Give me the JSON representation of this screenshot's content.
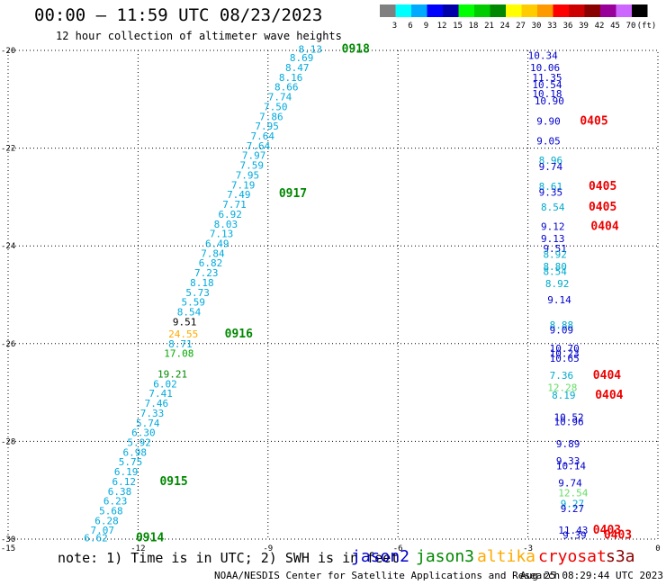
{
  "header": {
    "title": "00:00 – 11:59 UTC 08/23/2023",
    "subtitle": "12 hour collection of altimeter wave heights"
  },
  "color_scale": {
    "colors": [
      "#808080",
      "#00ffff",
      "#00aaff",
      "#0000ff",
      "#0000aa",
      "#00ff00",
      "#00cc00",
      "#008800",
      "#ffff00",
      "#ffcc00",
      "#ff9900",
      "#ff0000",
      "#cc0000",
      "#880000",
      "#990099",
      "#cc66ff",
      "#000000"
    ],
    "labels": [
      "3",
      "6",
      "9",
      "12",
      "15",
      "18",
      "21",
      "24",
      "27",
      "30",
      "33",
      "36",
      "39",
      "42",
      "45",
      "70",
      "(ft)"
    ]
  },
  "map": {
    "lon_ticks": [
      "-15",
      "-12",
      "-9",
      "-6",
      "-3",
      "0"
    ],
    "lat_ticks": [
      "-20",
      "-22",
      "-24",
      "-26",
      "-28",
      "-30"
    ],
    "colors": {
      "jason3_track": "#00aadd",
      "jason3_alt": "#00aa00",
      "jason3_bright": "#33cc33",
      "altika": "#ffaa00",
      "jason2": "#0000cc",
      "jason2_alt": "#00aacc",
      "jason2_light": "#66dd66",
      "time_green": "#008800",
      "time_red": "#ee0000",
      "black": "#000000"
    },
    "labels": [
      {
        "text": "8.13",
        "lon": -8.3,
        "lat": -19.97,
        "c": "jason3_track"
      },
      {
        "text": "0918",
        "lon": -7.3,
        "lat": -19.97,
        "c": "time_green",
        "big": true
      },
      {
        "text": "8.69",
        "lon": -8.5,
        "lat": -20.15,
        "c": "jason3_track"
      },
      {
        "text": "8.47",
        "lon": -8.6,
        "lat": -20.35,
        "c": "jason3_track"
      },
      {
        "text": "8.16",
        "lon": -8.75,
        "lat": -20.55,
        "c": "jason3_track"
      },
      {
        "text": "8.66",
        "lon": -8.85,
        "lat": -20.75,
        "c": "jason3_track"
      },
      {
        "text": "7.74",
        "lon": -9.0,
        "lat": -20.95,
        "c": "jason3_track"
      },
      {
        "text": "7.50",
        "lon": -9.1,
        "lat": -21.15,
        "c": "jason3_track"
      },
      {
        "text": "7.86",
        "lon": -9.2,
        "lat": -21.35,
        "c": "jason3_track"
      },
      {
        "text": "7.95",
        "lon": -9.3,
        "lat": -21.55,
        "c": "jason3_track"
      },
      {
        "text": "7.64",
        "lon": -9.4,
        "lat": -21.75,
        "c": "jason3_track"
      },
      {
        "text": "7.64",
        "lon": -9.5,
        "lat": -21.95,
        "c": "jason3_track"
      },
      {
        "text": "7.97",
        "lon": -9.6,
        "lat": -22.15,
        "c": "jason3_track"
      },
      {
        "text": "7.59",
        "lon": -9.65,
        "lat": -22.35,
        "c": "jason3_track"
      },
      {
        "text": "7.95",
        "lon": -9.75,
        "lat": -22.55,
        "c": "jason3_track"
      },
      {
        "text": "7.19",
        "lon": -9.85,
        "lat": -22.75,
        "c": "jason3_track"
      },
      {
        "text": "7.49",
        "lon": -9.95,
        "lat": -22.95,
        "c": "jason3_track"
      },
      {
        "text": "0917",
        "lon": -8.75,
        "lat": -22.93,
        "c": "time_green",
        "big": true
      },
      {
        "text": "7.71",
        "lon": -10.05,
        "lat": -23.15,
        "c": "jason3_track"
      },
      {
        "text": "6.92",
        "lon": -10.15,
        "lat": -23.35,
        "c": "jason3_track"
      },
      {
        "text": "8.03",
        "lon": -10.25,
        "lat": -23.55,
        "c": "jason3_track"
      },
      {
        "text": "7.13",
        "lon": -10.35,
        "lat": -23.75,
        "c": "jason3_track"
      },
      {
        "text": "6.49",
        "lon": -10.45,
        "lat": -23.95,
        "c": "jason3_track"
      },
      {
        "text": "7.84",
        "lon": -10.55,
        "lat": -24.15,
        "c": "jason3_track"
      },
      {
        "text": "6.82",
        "lon": -10.6,
        "lat": -24.35,
        "c": "jason3_track"
      },
      {
        "text": "7.23",
        "lon": -10.7,
        "lat": -24.55,
        "c": "jason3_track"
      },
      {
        "text": "8.18",
        "lon": -10.8,
        "lat": -24.75,
        "c": "jason3_track"
      },
      {
        "text": "5.73",
        "lon": -10.9,
        "lat": -24.95,
        "c": "jason3_track"
      },
      {
        "text": "5.59",
        "lon": -11.0,
        "lat": -25.15,
        "c": "jason3_track"
      },
      {
        "text": "8.54",
        "lon": -11.1,
        "lat": -25.35,
        "c": "jason3_track"
      },
      {
        "text": "9.51",
        "lon": -11.2,
        "lat": -25.55,
        "c": "black"
      },
      {
        "text": "24.55",
        "lon": -11.3,
        "lat": -25.8,
        "c": "altika"
      },
      {
        "text": "0916",
        "lon": -10.0,
        "lat": -25.8,
        "c": "time_green",
        "big": true
      },
      {
        "text": "8.71",
        "lon": -11.3,
        "lat": -26.0,
        "c": "jason3_track"
      },
      {
        "text": "17.08",
        "lon": -11.4,
        "lat": -26.2,
        "c": "jason3_alt"
      },
      {
        "text": "19.21",
        "lon": -11.55,
        "lat": -26.62,
        "c": "time_green"
      },
      {
        "text": "6.02",
        "lon": -11.65,
        "lat": -26.82,
        "c": "jason3_track"
      },
      {
        "text": "7.41",
        "lon": -11.75,
        "lat": -27.02,
        "c": "jason3_track"
      },
      {
        "text": "7.46",
        "lon": -11.85,
        "lat": -27.22,
        "c": "jason3_track"
      },
      {
        "text": "7.33",
        "lon": -11.95,
        "lat": -27.42,
        "c": "jason3_track"
      },
      {
        "text": "5.74",
        "lon": -12.05,
        "lat": -27.62,
        "c": "jason3_track"
      },
      {
        "text": "6.30",
        "lon": -12.15,
        "lat": -27.82,
        "c": "jason3_track"
      },
      {
        "text": "5.92",
        "lon": -12.25,
        "lat": -28.02,
        "c": "jason3_track"
      },
      {
        "text": "6.98",
        "lon": -12.35,
        "lat": -28.22,
        "c": "jason3_track"
      },
      {
        "text": "5.75",
        "lon": -12.45,
        "lat": -28.42,
        "c": "jason3_track"
      },
      {
        "text": "6.19",
        "lon": -12.55,
        "lat": -28.62,
        "c": "jason3_track"
      },
      {
        "text": "6.12",
        "lon": -12.6,
        "lat": -28.82,
        "c": "jason3_track"
      },
      {
        "text": "0915",
        "lon": -11.5,
        "lat": -28.82,
        "c": "time_green",
        "big": true
      },
      {
        "text": "6.38",
        "lon": -12.7,
        "lat": -29.02,
        "c": "jason3_track"
      },
      {
        "text": "6.23",
        "lon": -12.8,
        "lat": -29.22,
        "c": "jason3_track"
      },
      {
        "text": "5.68",
        "lon": -12.9,
        "lat": -29.42,
        "c": "jason3_track"
      },
      {
        "text": "6.28",
        "lon": -13.0,
        "lat": -29.62,
        "c": "jason3_track"
      },
      {
        "text": "7.07",
        "lon": -13.1,
        "lat": -29.82,
        "c": "jason3_track"
      },
      {
        "text": "6.62",
        "lon": -13.25,
        "lat": -29.97,
        "c": "jason3_track"
      },
      {
        "text": "0914",
        "lon": -12.05,
        "lat": -29.97,
        "c": "time_green",
        "big": true
      },
      {
        "text": "10.34",
        "lon": -3.0,
        "lat": -20.1,
        "c": "jason2"
      },
      {
        "text": "10.06",
        "lon": -2.95,
        "lat": -20.35,
        "c": "jason2"
      },
      {
        "text": "11.35",
        "lon": -2.9,
        "lat": -20.55,
        "c": "jason2"
      },
      {
        "text": "10.54",
        "lon": -2.9,
        "lat": -20.7,
        "c": "jason2"
      },
      {
        "text": "10.18",
        "lon": -2.9,
        "lat": -20.88,
        "c": "jason2"
      },
      {
        "text": "10.90",
        "lon": -2.85,
        "lat": -21.03,
        "c": "jason2"
      },
      {
        "text": "9.90",
        "lon": -2.8,
        "lat": -21.45,
        "c": "jason2"
      },
      {
        "text": "0405",
        "lon": -1.8,
        "lat": -21.45,
        "c": "time_red",
        "big": true
      },
      {
        "text": "9.05",
        "lon": -2.8,
        "lat": -21.85,
        "c": "jason2"
      },
      {
        "text": "8.96",
        "lon": -2.75,
        "lat": -22.25,
        "c": "jason2_alt"
      },
      {
        "text": "9.74",
        "lon": -2.75,
        "lat": -22.38,
        "c": "jason2"
      },
      {
        "text": "8.61",
        "lon": -2.75,
        "lat": -22.78,
        "c": "jason2_alt"
      },
      {
        "text": "9.35",
        "lon": -2.75,
        "lat": -22.9,
        "c": "jason2"
      },
      {
        "text": "0405",
        "lon": -1.6,
        "lat": -22.78,
        "c": "time_red",
        "big": true
      },
      {
        "text": "8.54",
        "lon": -2.7,
        "lat": -23.2,
        "c": "jason2_alt"
      },
      {
        "text": "0405",
        "lon": -1.6,
        "lat": -23.2,
        "c": "time_red",
        "big": true
      },
      {
        "text": "9.12",
        "lon": -2.7,
        "lat": -23.6,
        "c": "jason2"
      },
      {
        "text": "0404",
        "lon": -1.55,
        "lat": -23.6,
        "c": "time_red",
        "big": true
      },
      {
        "text": "9.13",
        "lon": -2.7,
        "lat": -23.85,
        "c": "jason2"
      },
      {
        "text": "9.51",
        "lon": -2.65,
        "lat": -24.05,
        "c": "jason2"
      },
      {
        "text": "8.92",
        "lon": -2.65,
        "lat": -24.17,
        "c": "jason2_alt"
      },
      {
        "text": "8.80",
        "lon": -2.65,
        "lat": -24.42,
        "c": "jason2_alt"
      },
      {
        "text": "8.54",
        "lon": -2.65,
        "lat": -24.52,
        "c": "jason2_alt"
      },
      {
        "text": "8.92",
        "lon": -2.6,
        "lat": -24.77,
        "c": "jason2_alt"
      },
      {
        "text": "9.14",
        "lon": -2.55,
        "lat": -25.1,
        "c": "jason2"
      },
      {
        "text": "8.88",
        "lon": -2.5,
        "lat": -25.62,
        "c": "jason2_alt"
      },
      {
        "text": "9.09",
        "lon": -2.5,
        "lat": -25.72,
        "c": "jason2"
      },
      {
        "text": "10.70",
        "lon": -2.5,
        "lat": -26.1,
        "c": "jason2"
      },
      {
        "text": "10.23",
        "lon": -2.5,
        "lat": -26.2,
        "c": "jason2"
      },
      {
        "text": "10.65",
        "lon": -2.5,
        "lat": -26.3,
        "c": "jason2"
      },
      {
        "text": "7.36",
        "lon": -2.5,
        "lat": -26.65,
        "c": "jason2_alt"
      },
      {
        "text": "0404",
        "lon": -1.5,
        "lat": -26.65,
        "c": "time_red",
        "big": true
      },
      {
        "text": "12.28",
        "lon": -2.55,
        "lat": -26.9,
        "c": "jason2_light"
      },
      {
        "text": "8.19",
        "lon": -2.45,
        "lat": -27.05,
        "c": "jason2_alt"
      },
      {
        "text": "0404",
        "lon": -1.45,
        "lat": -27.05,
        "c": "time_red",
        "big": true
      },
      {
        "text": "10.52",
        "lon": -2.4,
        "lat": -27.5,
        "c": "jason2"
      },
      {
        "text": "10.96",
        "lon": -2.4,
        "lat": -27.6,
        "c": "jason2"
      },
      {
        "text": "9.89",
        "lon": -2.35,
        "lat": -28.05,
        "c": "jason2"
      },
      {
        "text": "9.33",
        "lon": -2.35,
        "lat": -28.4,
        "c": "jason2"
      },
      {
        "text": "10.14",
        "lon": -2.35,
        "lat": -28.5,
        "c": "jason2"
      },
      {
        "text": "9.74",
        "lon": -2.3,
        "lat": -28.85,
        "c": "jason2"
      },
      {
        "text": "12.54",
        "lon": -2.3,
        "lat": -29.05,
        "c": "jason2_light"
      },
      {
        "text": "9.27",
        "lon": -2.25,
        "lat": -29.27,
        "c": "jason2_alt"
      },
      {
        "text": "9.27",
        "lon": -2.25,
        "lat": -29.37,
        "c": "jason2"
      },
      {
        "text": "11.43",
        "lon": -2.3,
        "lat": -29.82,
        "c": "jason2"
      },
      {
        "text": "9.39",
        "lon": -2.2,
        "lat": -29.92,
        "c": "jason2"
      },
      {
        "text": "0403",
        "lon": -1.5,
        "lat": -29.82,
        "c": "time_red",
        "big": true
      },
      {
        "text": "0403",
        "lon": -1.25,
        "lat": -29.92,
        "c": "time_red",
        "big": true
      }
    ]
  },
  "legend": {
    "note": "note: 1) Time is in UTC; 2) SWH is in feet",
    "satellites": [
      {
        "name": "jason2",
        "color": "#0000cc"
      },
      {
        "name": "jason3",
        "color": "#008800"
      },
      {
        "name": "altika",
        "color": "#ffaa00"
      },
      {
        "name": "cryosat",
        "color": "#ee0000"
      },
      {
        "name": "s3a",
        "color": "#880000"
      }
    ]
  },
  "footer": {
    "credit": "NOAA/NESDIS Center for Satellite Applications and Research",
    "timestamp": "Aug 25 08:29:44 UTC 2023"
  }
}
